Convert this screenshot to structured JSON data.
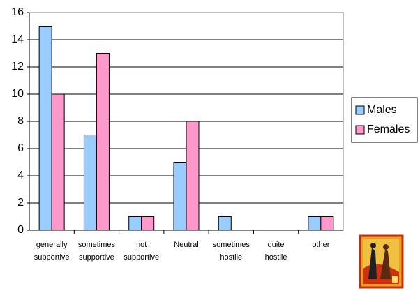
{
  "chart_data": {
    "type": "bar",
    "categories": [
      "generally supportive",
      "sometimes supportive",
      "not supportive",
      "Neutral",
      "sometimes hostile",
      "quite hostile",
      "other"
    ],
    "series": [
      {
        "name": "Males",
        "color": "#99ccff",
        "values": [
          15,
          7,
          1,
          5,
          1,
          0,
          1
        ]
      },
      {
        "name": "Females",
        "color": "#ff99cc",
        "values": [
          10,
          13,
          1,
          8,
          0,
          0,
          1
        ]
      }
    ],
    "ylim": [
      0,
      16
    ],
    "yticks": [
      0,
      2,
      4,
      6,
      8,
      10,
      12,
      14,
      16
    ],
    "grid": true,
    "legend": "right"
  }
}
